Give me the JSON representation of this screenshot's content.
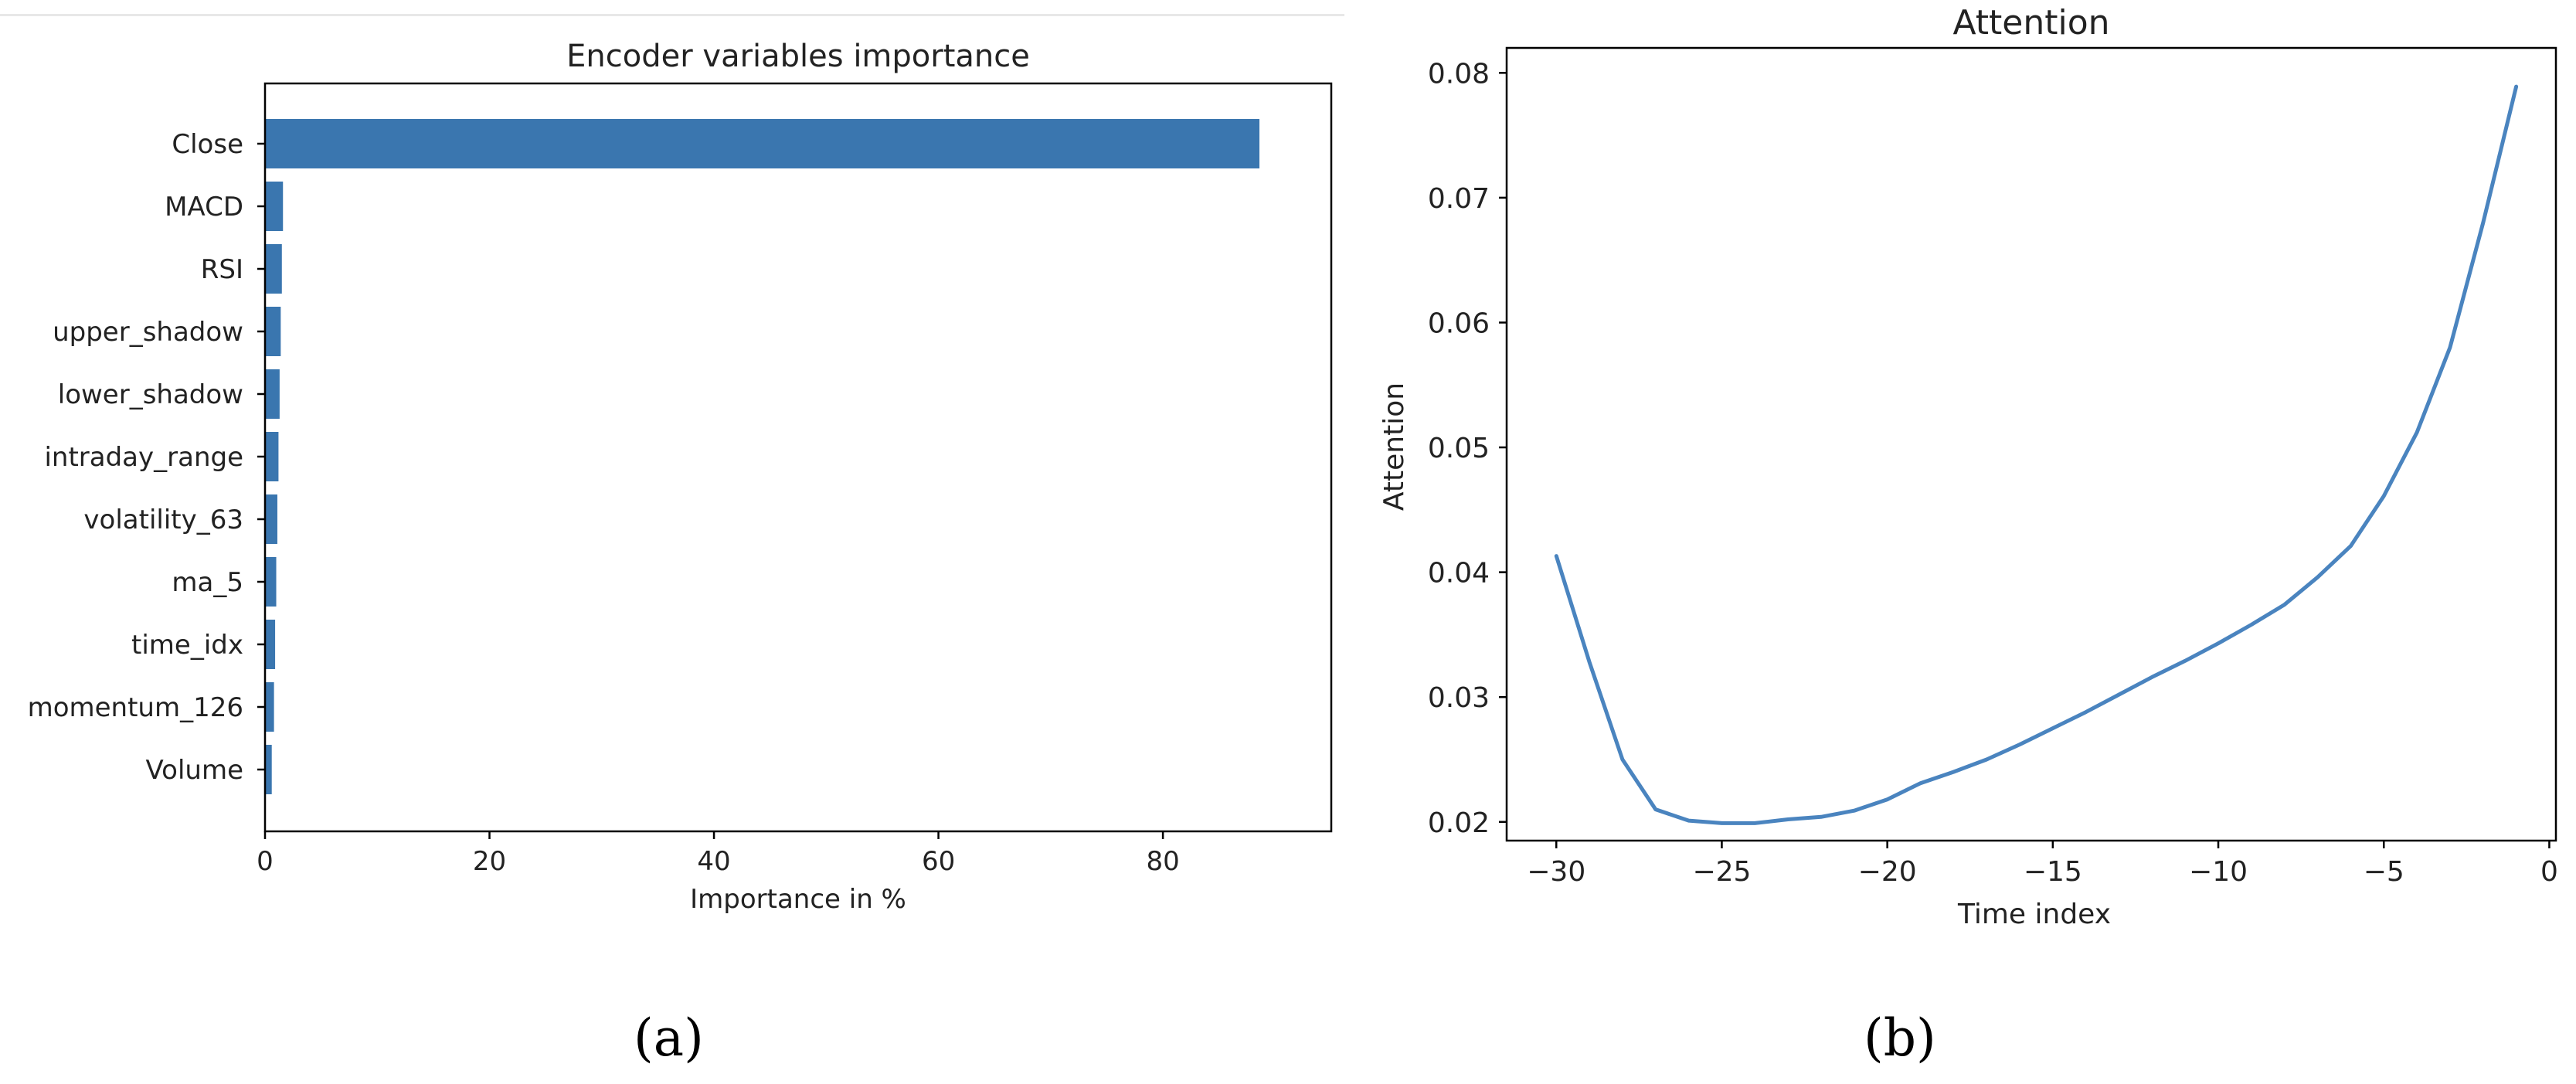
{
  "captions": {
    "a": "(a)",
    "b": "(b)"
  },
  "chart_data": [
    {
      "type": "bar",
      "orientation": "horizontal",
      "title": "Encoder variables importance",
      "xlabel": "Importance in %",
      "ylabel": "",
      "categories": [
        "Close",
        "MACD",
        "RSI",
        "upper_shadow",
        "lower_shadow",
        "intraday_range",
        "volatility_63",
        "ma_5",
        "time_idx",
        "momentum_126",
        "Volume"
      ],
      "values": [
        88.6,
        1.6,
        1.5,
        1.4,
        1.3,
        1.2,
        1.1,
        1.0,
        0.9,
        0.8,
        0.6
      ],
      "xlim": [
        0,
        95
      ],
      "xticks": [
        0,
        20,
        40,
        60,
        80
      ],
      "grid": false,
      "color": "#3a76af"
    },
    {
      "type": "line",
      "title": "Attention",
      "xlabel": "Time index",
      "ylabel": "Attention",
      "x": [
        -30,
        -29,
        -28,
        -27,
        -26,
        -25,
        -24,
        -23,
        -22,
        -21,
        -20,
        -19,
        -18,
        -17,
        -16,
        -15,
        -14,
        -13,
        -12,
        -11,
        -10,
        -9,
        -8,
        -7,
        -6,
        -5,
        -4,
        -3,
        -2,
        -1
      ],
      "y": [
        0.0413,
        0.0328,
        0.025,
        0.021,
        0.0201,
        0.0199,
        0.0199,
        0.0202,
        0.0204,
        0.0209,
        0.0218,
        0.0231,
        0.024,
        0.025,
        0.0262,
        0.0275,
        0.0288,
        0.0302,
        0.0316,
        0.0329,
        0.0343,
        0.0358,
        0.0374,
        0.0396,
        0.0421,
        0.0461,
        0.0512,
        0.058,
        0.068,
        0.0789
      ],
      "xlim": [
        -31.5,
        0.2
      ],
      "ylim": [
        0.0185,
        0.082
      ],
      "xticks": [
        -30,
        -25,
        -20,
        -15,
        -10,
        -5,
        0
      ],
      "yticks": [
        0.02,
        0.03,
        0.04,
        0.05,
        0.06,
        0.07,
        0.08
      ],
      "xtick_labels": [
        "−30",
        "−25",
        "−20",
        "−15",
        "−10",
        "−5",
        "0"
      ],
      "ytick_labels": [
        "0.02",
        "0.03",
        "0.04",
        "0.05",
        "0.06",
        "0.07",
        "0.08"
      ],
      "grid": false,
      "color": "#4a84bf"
    }
  ]
}
